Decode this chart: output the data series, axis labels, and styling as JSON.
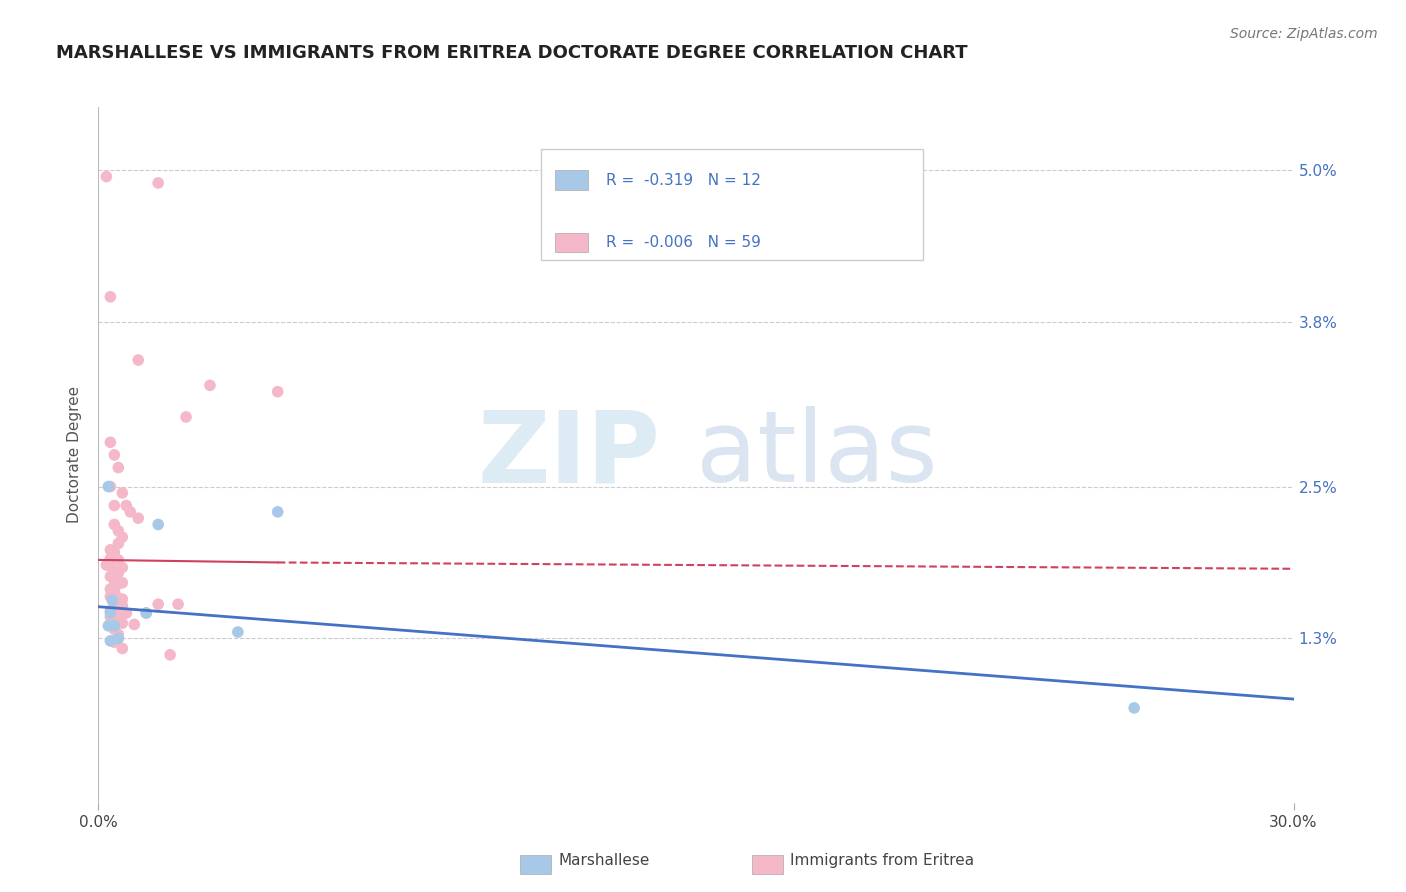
{
  "title": "MARSHALLESE VS IMMIGRANTS FROM ERITREA DOCTORATE DEGREE CORRELATION CHART",
  "source": "Source: ZipAtlas.com",
  "ylabel": "Doctorate Degree",
  "ytick_values": [
    1.3,
    2.5,
    3.8,
    5.0
  ],
  "xlim": [
    0.0,
    30.0
  ],
  "ylim": [
    0.0,
    5.5
  ],
  "blue_color": "#a8c8e8",
  "pink_color": "#f4b8c8",
  "blue_line_color": "#4472c4",
  "pink_line_color": "#d04060",
  "blue_scatter": [
    [
      0.25,
      2.5
    ],
    [
      4.5,
      2.3
    ],
    [
      1.5,
      2.2
    ],
    [
      0.3,
      1.5
    ],
    [
      0.25,
      1.4
    ],
    [
      0.4,
      1.4
    ],
    [
      3.5,
      1.35
    ],
    [
      0.5,
      1.3
    ],
    [
      0.3,
      1.28
    ],
    [
      26.0,
      0.75
    ],
    [
      0.35,
      1.6
    ],
    [
      1.2,
      1.5
    ]
  ],
  "pink_scatter": [
    [
      0.2,
      4.95
    ],
    [
      1.5,
      4.9
    ],
    [
      0.3,
      4.0
    ],
    [
      1.0,
      3.5
    ],
    [
      2.8,
      3.3
    ],
    [
      4.5,
      3.25
    ],
    [
      2.2,
      3.05
    ],
    [
      0.3,
      2.85
    ],
    [
      0.4,
      2.75
    ],
    [
      0.5,
      2.65
    ],
    [
      0.3,
      2.5
    ],
    [
      0.6,
      2.45
    ],
    [
      0.4,
      2.35
    ],
    [
      0.7,
      2.35
    ],
    [
      0.8,
      2.3
    ],
    [
      1.0,
      2.25
    ],
    [
      0.4,
      2.2
    ],
    [
      0.5,
      2.15
    ],
    [
      0.6,
      2.1
    ],
    [
      0.5,
      2.05
    ],
    [
      0.3,
      2.0
    ],
    [
      0.4,
      1.98
    ],
    [
      0.3,
      1.93
    ],
    [
      0.4,
      1.93
    ],
    [
      0.5,
      1.92
    ],
    [
      0.2,
      1.88
    ],
    [
      0.3,
      1.87
    ],
    [
      0.6,
      1.86
    ],
    [
      0.4,
      1.83
    ],
    [
      0.5,
      1.82
    ],
    [
      0.3,
      1.79
    ],
    [
      0.4,
      1.76
    ],
    [
      0.6,
      1.74
    ],
    [
      0.5,
      1.73
    ],
    [
      0.4,
      1.72
    ],
    [
      0.3,
      1.69
    ],
    [
      0.4,
      1.67
    ],
    [
      0.3,
      1.63
    ],
    [
      0.5,
      1.62
    ],
    [
      0.6,
      1.61
    ],
    [
      0.4,
      1.59
    ],
    [
      0.5,
      1.57
    ],
    [
      0.6,
      1.56
    ],
    [
      1.5,
      1.57
    ],
    [
      2.0,
      1.57
    ],
    [
      0.3,
      1.52
    ],
    [
      0.4,
      1.51
    ],
    [
      0.5,
      1.5
    ],
    [
      0.7,
      1.5
    ],
    [
      1.2,
      1.5
    ],
    [
      0.3,
      1.47
    ],
    [
      0.5,
      1.46
    ],
    [
      0.4,
      1.43
    ],
    [
      0.6,
      1.42
    ],
    [
      0.9,
      1.41
    ],
    [
      0.4,
      1.37
    ],
    [
      0.5,
      1.33
    ],
    [
      0.4,
      1.27
    ],
    [
      0.6,
      1.22
    ],
    [
      1.8,
      1.17
    ]
  ],
  "blue_line": [
    [
      0.0,
      1.55
    ],
    [
      30.0,
      0.82
    ]
  ],
  "pink_line": [
    [
      0.0,
      1.92
    ],
    [
      30.0,
      1.85
    ]
  ],
  "pink_line_solid": [
    [
      0.0,
      1.92
    ],
    [
      4.5,
      1.9
    ]
  ],
  "pink_line_dashed": [
    [
      4.5,
      1.9
    ],
    [
      30.0,
      1.85
    ]
  ]
}
